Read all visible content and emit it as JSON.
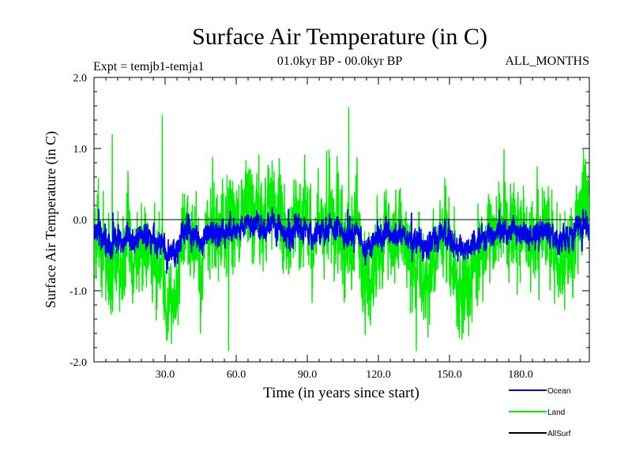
{
  "chart_data": {
    "type": "line",
    "title": "Surface Air Temperature (in C)",
    "subtitle_left": "Expt = temjb1-temja1",
    "subtitle_center": "01.0kyr BP - 00.0kyr BP",
    "subtitle_right": "ALL_MONTHS",
    "xlabel": "Time (in years since start)",
    "ylabel": "Surface Air Temperature (in C)",
    "xlim": [
      0,
      209
    ],
    "ylim": [
      -2.0,
      2.0
    ],
    "xticks": [
      {
        "value": 30,
        "label": "30.0"
      },
      {
        "value": 60,
        "label": "60.0"
      },
      {
        "value": 90,
        "label": "90.0"
      },
      {
        "value": 120,
        "label": "120.0"
      },
      {
        "value": 150,
        "label": "150.0"
      },
      {
        "value": 180,
        "label": "180.0"
      }
    ],
    "yticks": [
      {
        "value": 2.0,
        "label": "2.0"
      },
      {
        "value": 1.0,
        "label": "1.0"
      },
      {
        "value": 0.0,
        "label": "0.0"
      },
      {
        "value": -1.0,
        "label": "-1.0"
      },
      {
        "value": -2.0,
        "label": "-2.0"
      }
    ],
    "reference_line": 0.0,
    "samples_per_year": 12,
    "series": [
      {
        "name": "Land",
        "color": "#00ee00",
        "mean": -0.25,
        "noise_amplitude": 0.42,
        "notable_points": [
          {
            "x": 7.7,
            "y": 1.2
          },
          {
            "x": 28.8,
            "y": 1.47
          },
          {
            "x": 50.0,
            "y": 0.88
          },
          {
            "x": 56.8,
            "y": -1.85
          },
          {
            "x": 98.2,
            "y": 0.97
          },
          {
            "x": 107.5,
            "y": 1.58
          },
          {
            "x": 136.0,
            "y": -1.85
          },
          {
            "x": 173.0,
            "y": 0.99
          }
        ]
      },
      {
        "name": "Ocean",
        "color": "#0000ee",
        "mean": -0.2,
        "noise_amplitude": 0.12,
        "notable_points": [
          {
            "x": 2.0,
            "y": 0.15
          },
          {
            "x": 8.0,
            "y": 0.1
          },
          {
            "x": 40.0,
            "y": 0.08
          },
          {
            "x": 82.0,
            "y": 0.15
          },
          {
            "x": 107.0,
            "y": 0.15
          },
          {
            "x": 134.0,
            "y": 0.1
          },
          {
            "x": 171.0,
            "y": 0.15
          },
          {
            "x": 206.0,
            "y": -0.45
          }
        ]
      },
      {
        "name": "AllSurf",
        "color": "#000000",
        "mean": -0.21,
        "noise_amplitude": 0.16,
        "notable_points": []
      }
    ],
    "legend": [
      {
        "name": "Ocean",
        "color": "#0000ee"
      },
      {
        "name": "Land",
        "color": "#00ee00"
      },
      {
        "name": "AllSurf",
        "color": "#000000"
      }
    ],
    "legend_position": "bottom-right"
  }
}
